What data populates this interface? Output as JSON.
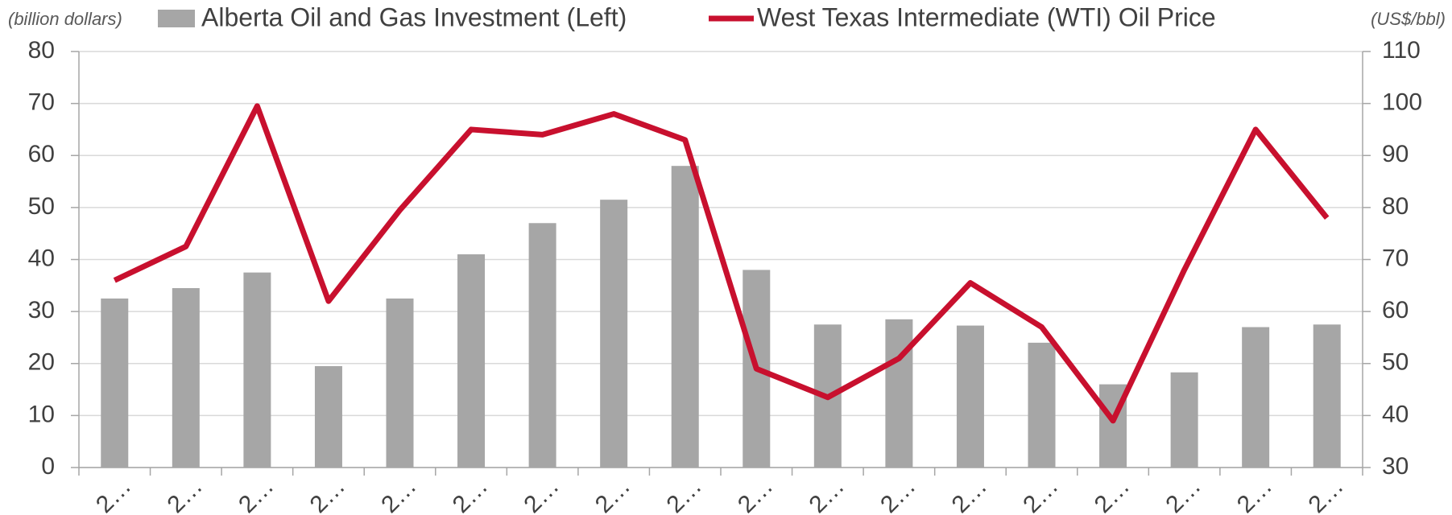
{
  "chart_data": {
    "type": "bar-line",
    "y_label": "(billion dollars)",
    "y2_label": "(US$/bbl)",
    "categories": [
      "2…",
      "2…",
      "2…",
      "2…",
      "2…",
      "2…",
      "2…",
      "2…",
      "2…",
      "2…",
      "2…",
      "2…",
      "2…",
      "2…",
      "2…",
      "2…",
      "2…",
      "2…"
    ],
    "series": [
      {
        "name": "Alberta Oil and Gas Investment (Left)",
        "type": "bar",
        "color": "#a6a6a6",
        "values": [
          32.5,
          34.5,
          37.5,
          19.5,
          32.5,
          41,
          47,
          51.5,
          58,
          38,
          27.5,
          28.5,
          27.3,
          24,
          16,
          18.3,
          27,
          27.5
        ]
      },
      {
        "name": "West Texas Intermediate (WTI) Oil Price",
        "type": "line",
        "axis": "y2",
        "color": "#c8102e",
        "values": [
          66,
          72.5,
          99.5,
          62,
          79.5,
          95,
          94,
          98,
          93,
          49,
          43.5,
          51,
          65.5,
          57,
          39,
          68,
          95,
          78
        ]
      }
    ],
    "ylim": [
      0,
      80
    ],
    "yticks": [
      0,
      10,
      20,
      30,
      40,
      50,
      60,
      70,
      80
    ],
    "y2lim": [
      30,
      110
    ],
    "y2ticks": [
      30,
      40,
      50,
      60,
      70,
      80,
      90,
      100,
      110
    ],
    "grid": true
  }
}
